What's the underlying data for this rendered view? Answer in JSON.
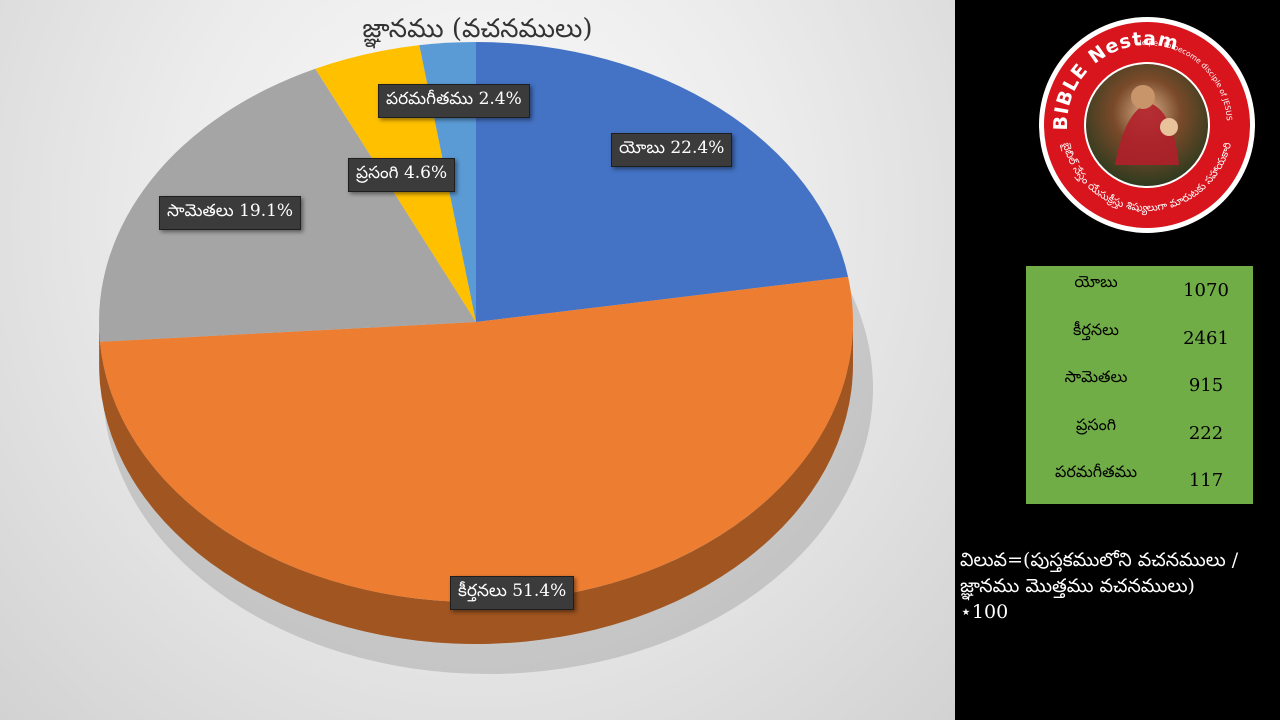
{
  "chart_data": {
    "type": "pie",
    "title": "జ్ఞానము (వచనములు)",
    "slices": [
      {
        "name": "యోబు",
        "value": 22.4,
        "label": "యోబు 22.4%",
        "color": "#4472c4"
      },
      {
        "name": "కీర్తనలు",
        "value": 51.4,
        "label": "కీర్తనలు 51.4%",
        "color": "#ed7d31"
      },
      {
        "name": "సామెతలు",
        "value": 19.1,
        "label": "సామెతలు 19.1%",
        "color": "#a5a5a5"
      },
      {
        "name": "ప్రసంగి",
        "value": 4.6,
        "label": "ప్రసంగి 4.6%",
        "color": "#ffc000"
      },
      {
        "name": "పరమగీతము",
        "value": 2.4,
        "label": "పరమగీతము 2.4%",
        "color": "#5b9bd5"
      }
    ],
    "start_angle": "12 o'clock",
    "direction": "clockwise",
    "style": "3d-tilted"
  },
  "table": {
    "rows": [
      {
        "name": "యోబు",
        "value": "1070"
      },
      {
        "name": "కీర్తనలు",
        "value": "2461"
      },
      {
        "name": "సామెతలు",
        "value": "915"
      },
      {
        "name": "ప్రసంగి",
        "value": "222"
      },
      {
        "name": "పరమగీతము",
        "value": "117"
      }
    ],
    "background": "#70ad47"
  },
  "formula": {
    "line1": "విలువ=(పుస్తకములోని వచనములు /",
    "line2": "జ్ఞానము మొత్తము వచనములు)",
    "line3": "⋆100"
  },
  "logo": {
    "top_text": "BIBLE Nestam",
    "tagline": "Helper to become disciple of JESUS CHRIST",
    "telugu_text": "బైబిల్ నేస్తం యేసుక్రీస్తు శిష్యులుగా మారుటకు సహాయకారి",
    "ring_color": "#d8141c"
  }
}
